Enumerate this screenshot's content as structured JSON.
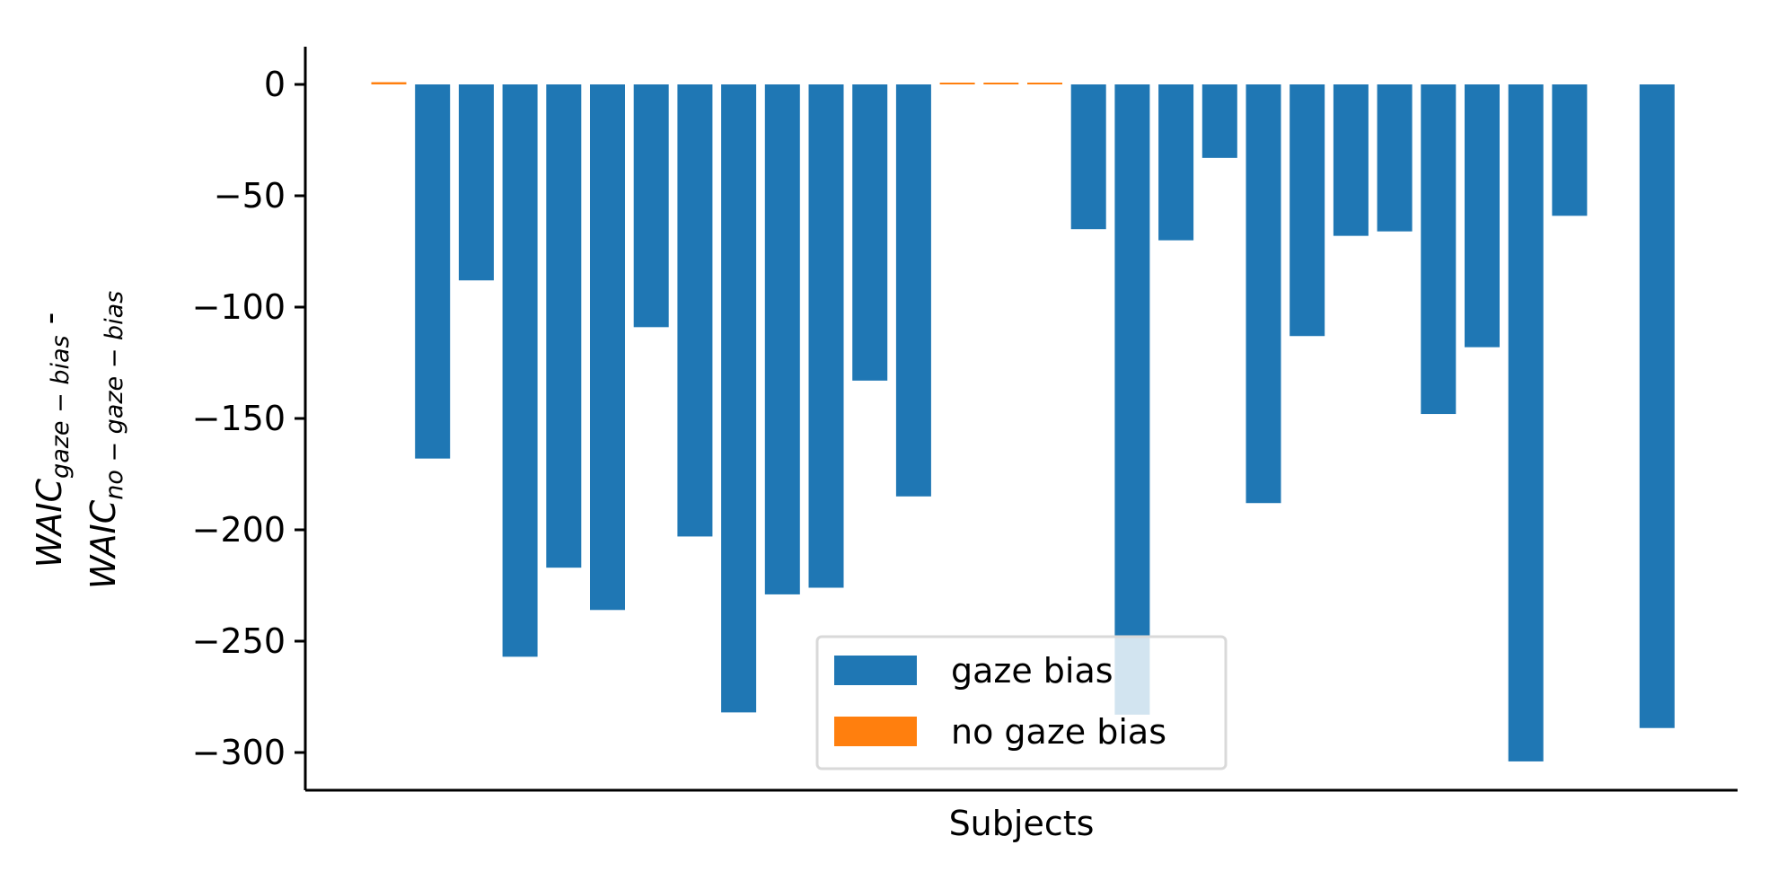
{
  "chart_data": {
    "type": "bar",
    "xlabel": "Subjects",
    "ylabel": {
      "line1": {
        "base": "WAIC",
        "sub": "gaze − bias",
        "suffix": " -"
      },
      "line2": {
        "base": "WAIC",
        "sub": "no − gaze − bias",
        "suffix": ""
      }
    },
    "ylim": [
      -318,
      17
    ],
    "yticks": [
      0,
      -50,
      -100,
      -150,
      -200,
      -250,
      -300
    ],
    "ytick_labels": [
      "0",
      "−50",
      "−100",
      "−150",
      "−200",
      "−250",
      "−300"
    ],
    "xticks_visible": false,
    "legend_placement": "lower-center",
    "series": [
      {
        "name": "gaze bias",
        "color": "#1f77b4",
        "values": [
          null,
          -168,
          -88,
          -257,
          -217,
          -236,
          -109,
          -203,
          -282,
          -229,
          -226,
          -133,
          -185,
          null,
          null,
          null,
          -65,
          -283,
          -70,
          -33,
          -188,
          -113,
          -68,
          -66,
          -148,
          -118,
          -304,
          -59,
          null,
          -289
        ]
      },
      {
        "name": "no gaze bias",
        "color": "#ff7f0e",
        "values": [
          1,
          null,
          null,
          null,
          null,
          null,
          null,
          null,
          null,
          null,
          null,
          null,
          null,
          0.5,
          0.5,
          0.5,
          null,
          null,
          null,
          null,
          null,
          null,
          null,
          null,
          null,
          null,
          null,
          null,
          null,
          null
        ]
      }
    ]
  }
}
